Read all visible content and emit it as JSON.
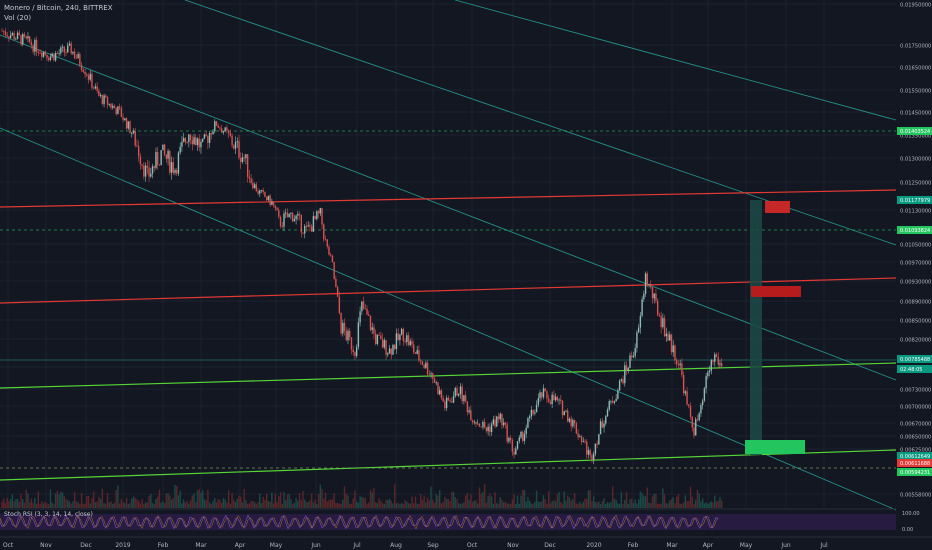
{
  "header": {
    "symbol_line": "Monero / Bitcoin, 240, BITTREX",
    "volume_line": "Vol (20)"
  },
  "oscillator": {
    "legend": "Stoch RSI (3, 3, 14, 14, close)",
    "levels": [
      "100.00",
      "0.00"
    ]
  },
  "chart_data": {
    "type": "candlestick",
    "title": "Monero / Bitcoin, 240, BITTREX",
    "y_axis_ticks": [
      "0.01950000",
      "0.01750000",
      "0.01650000",
      "0.01550000",
      "0.01450000",
      "0.01350000",
      "0.01300000",
      "0.01250000",
      "0.01130000",
      "0.01050000",
      "0.00970000",
      "0.00930000",
      "0.00890000",
      "0.00850000",
      "0.00820000",
      "0.00770000",
      "0.00730000",
      "0.00700000",
      "0.00670000",
      "0.00650000",
      "0.00625000",
      "0.00558000"
    ],
    "x_axis_ticks": [
      "Oct",
      "Nov",
      "Dec",
      "2019",
      "Feb",
      "Mar",
      "Apr",
      "May",
      "Jun",
      "Jul",
      "Aug",
      "Sep",
      "Oct",
      "Nov",
      "Dec",
      "2020",
      "Feb",
      "Mar",
      "Apr",
      "May",
      "Jun",
      "Jul"
    ],
    "ylim": [
      0.0053,
      0.0198
    ],
    "price_labels": [
      {
        "value": "0.01403524",
        "color": "#22c55e"
      },
      {
        "value": "0.01177979",
        "color": "#089981"
      },
      {
        "value": "0.01093824",
        "color": "#22c55e"
      },
      {
        "value": "0.00785488",
        "color": "#089981"
      },
      {
        "value": "02:48:05",
        "color": "#089981"
      },
      {
        "value": "0.00612649",
        "color": "#089981"
      },
      {
        "value": "0.00611688",
        "color": "#e53935"
      },
      {
        "value": "0.00594231",
        "color": "#22c55e"
      }
    ],
    "price_path": [
      [
        0,
        0.0182
      ],
      [
        4,
        0.0176
      ],
      [
        7,
        0.017
      ],
      [
        10,
        0.0173
      ],
      [
        12,
        0.0164
      ],
      [
        14,
        0.0152
      ],
      [
        17,
        0.0145
      ],
      [
        19,
        0.0135
      ],
      [
        21,
        0.0126
      ],
      [
        23,
        0.0131
      ],
      [
        25,
        0.0128
      ],
      [
        27,
        0.0136
      ],
      [
        29,
        0.0132
      ],
      [
        31,
        0.014
      ],
      [
        33,
        0.0134
      ],
      [
        35,
        0.013
      ],
      [
        37,
        0.0121
      ],
      [
        39,
        0.0116
      ],
      [
        40,
        0.011
      ],
      [
        42,
        0.0112
      ],
      [
        44,
        0.0108
      ],
      [
        46,
        0.0112
      ],
      [
        47,
        0.0103
      ],
      [
        49,
        0.0084
      ],
      [
        51,
        0.008
      ],
      [
        52,
        0.0088
      ],
      [
        54,
        0.0082
      ],
      [
        56,
        0.008
      ],
      [
        58,
        0.0083
      ],
      [
        60,
        0.0079
      ],
      [
        62,
        0.0076
      ],
      [
        64,
        0.007
      ],
      [
        66,
        0.0073
      ],
      [
        68,
        0.0068
      ],
      [
        70,
        0.0066
      ],
      [
        72,
        0.0068
      ],
      [
        74,
        0.0062
      ],
      [
        76,
        0.0067
      ],
      [
        78,
        0.0072
      ],
      [
        80,
        0.0071
      ],
      [
        82,
        0.0068
      ],
      [
        84,
        0.0064
      ],
      [
        85,
        0.0061
      ],
      [
        87,
        0.0068
      ],
      [
        89,
        0.0073
      ],
      [
        91,
        0.0079
      ],
      [
        92,
        0.0083
      ],
      [
        93,
        0.0094
      ],
      [
        95,
        0.0086
      ],
      [
        96,
        0.0083
      ],
      [
        98,
        0.0077
      ],
      [
        99,
        0.007
      ],
      [
        100,
        0.0066
      ],
      [
        101,
        0.0069
      ],
      [
        102,
        0.0076
      ],
      [
        103,
        0.0079
      ],
      [
        104,
        0.0077
      ]
    ]
  },
  "colors": {
    "background": "#131722",
    "grid": "#1e222d",
    "channel": "#26a69a",
    "resistance": "#e53935",
    "support": "#4caf50",
    "green_label": "#22c55e",
    "stoch": "#9c27b0"
  }
}
